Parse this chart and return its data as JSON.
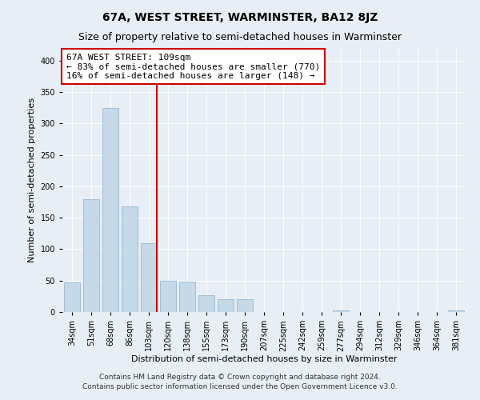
{
  "title": "67A, WEST STREET, WARMINSTER, BA12 8JZ",
  "subtitle": "Size of property relative to semi-detached houses in Warminster",
  "xlabel": "Distribution of semi-detached houses by size in Warminster",
  "ylabel": "Number of semi-detached properties",
  "footer_line1": "Contains HM Land Registry data © Crown copyright and database right 2024.",
  "footer_line2": "Contains public sector information licensed under the Open Government Licence v3.0.",
  "annotation_title": "67A WEST STREET: 109sqm",
  "annotation_line1": "← 83% of semi-detached houses are smaller (770)",
  "annotation_line2": "16% of semi-detached houses are larger (148) →",
  "bar_color": "#c5d9e8",
  "bar_edge_color": "#8ab0cc",
  "property_line_x": 4,
  "categories": [
    "34sqm",
    "51sqm",
    "68sqm",
    "86sqm",
    "103sqm",
    "120sqm",
    "138sqm",
    "155sqm",
    "173sqm",
    "190sqm",
    "207sqm",
    "225sqm",
    "242sqm",
    "259sqm",
    "277sqm",
    "294sqm",
    "312sqm",
    "329sqm",
    "346sqm",
    "364sqm",
    "381sqm"
  ],
  "values": [
    47,
    180,
    325,
    168,
    110,
    50,
    48,
    27,
    20,
    20,
    0,
    0,
    0,
    0,
    2,
    0,
    0,
    0,
    0,
    0,
    2
  ],
  "ylim": [
    0,
    420
  ],
  "yticks": [
    0,
    50,
    100,
    150,
    200,
    250,
    300,
    350,
    400
  ],
  "background_color": "#e8eef5",
  "annotation_box_facecolor": "#ffffff",
  "annotation_box_edgecolor": "#cc0000",
  "vline_color": "#cc0000",
  "title_fontsize": 10,
  "subtitle_fontsize": 9,
  "axis_label_fontsize": 8,
  "tick_fontsize": 7,
  "annotation_fontsize": 8,
  "footer_fontsize": 6.5,
  "vline_bin_index": 4
}
